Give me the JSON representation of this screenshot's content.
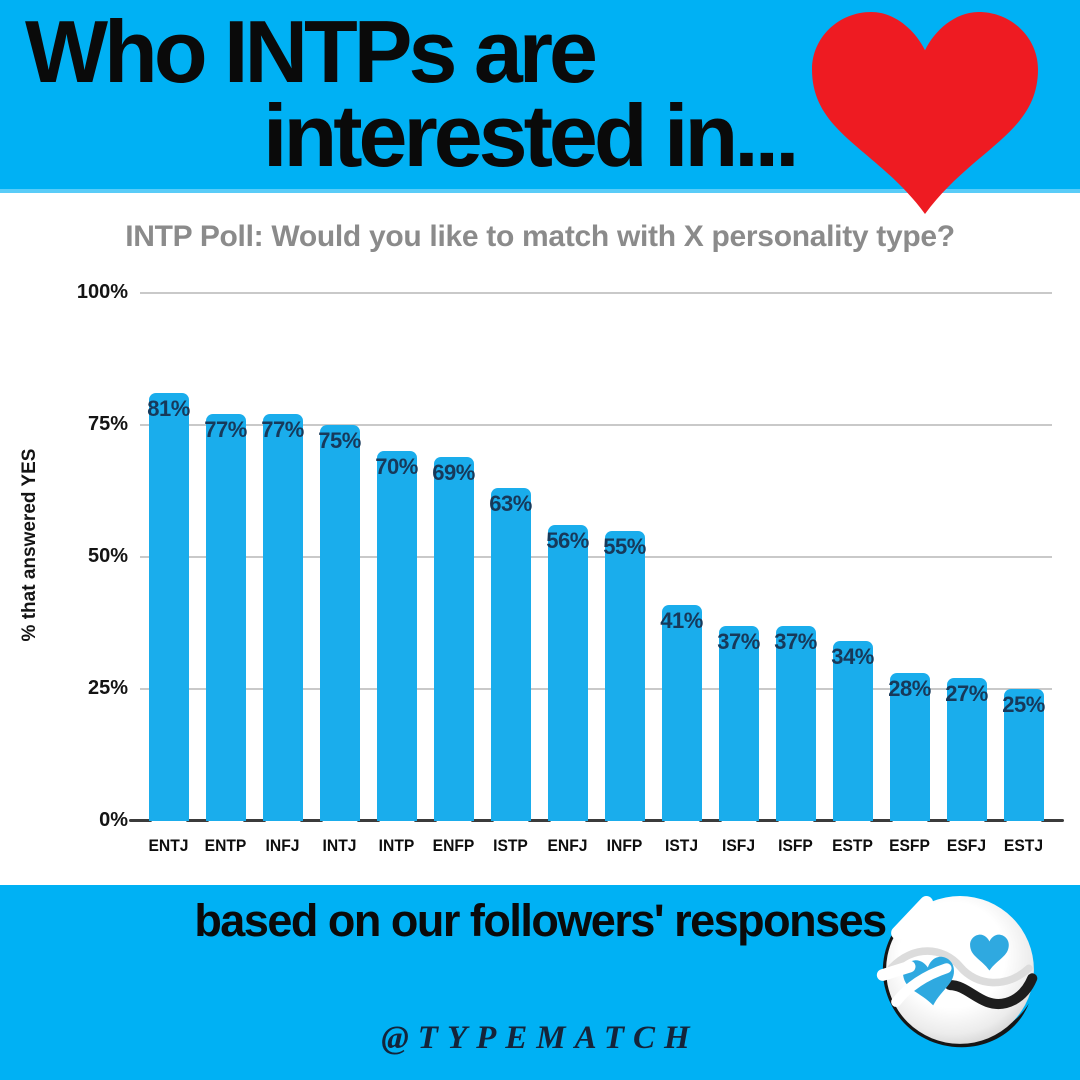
{
  "page": {
    "background": "#ffffff",
    "accent_blue": "#00b1f4",
    "heart_red": "#ee1b22"
  },
  "header": {
    "title_line1": "Who INTPs are",
    "title_line2": "interested in...",
    "heart_icon": "red-heart",
    "text_color": "#0a0a0a"
  },
  "chart_data": {
    "type": "bar",
    "title": "INTP Poll: Would you like to match with X personality type?",
    "xlabel": "",
    "ylabel": "% that answered YES",
    "categories": [
      "ENTJ",
      "ENTP",
      "INFJ",
      "INTJ",
      "INTP",
      "ENFP",
      "ISTP",
      "ENFJ",
      "INFP",
      "ISTJ",
      "ISFJ",
      "ISFP",
      "ESTP",
      "ESFP",
      "ESFJ",
      "ESTJ"
    ],
    "values": [
      81,
      77,
      77,
      75,
      70,
      69,
      63,
      56,
      55,
      41,
      37,
      37,
      34,
      28,
      27,
      25
    ],
    "value_labels": [
      "81%",
      "77%",
      "77%",
      "75%",
      "70%",
      "69%",
      "63%",
      "56%",
      "55%",
      "41%",
      "37%",
      "37%",
      "34%",
      "28%",
      "27%",
      "25%"
    ],
    "y_ticks": [
      {
        "label": "0%",
        "value": 0
      },
      {
        "label": "25%",
        "value": 25
      },
      {
        "label": "50%",
        "value": 50
      },
      {
        "label": "75%",
        "value": 75
      },
      {
        "label": "100%",
        "value": 100
      }
    ],
    "ylim": [
      0,
      100
    ],
    "grid": "horizontal",
    "legend": "none",
    "bar_color": "#1aadec",
    "value_label_color": "#17395a",
    "title_color": "#8b8b8b"
  },
  "footer": {
    "caption": "based on our followers' responses",
    "handle": "@TYPEMATCH",
    "logo": "yin-yang-hearts-logo"
  }
}
